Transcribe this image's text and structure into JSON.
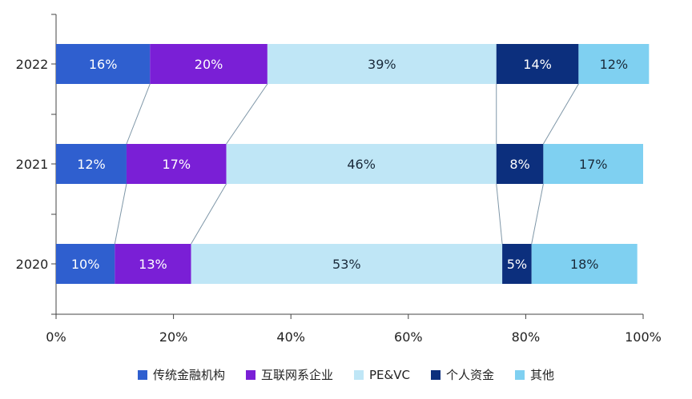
{
  "chart_data": {
    "type": "bar",
    "orientation": "horizontal",
    "stacked": "percent",
    "categories": [
      "2022",
      "2021",
      "2020"
    ],
    "series": [
      {
        "name": "传统金融机构",
        "color": "#2f5fcf",
        "values": [
          16,
          12,
          10
        ],
        "labels": [
          "16%",
          "12%",
          "10%"
        ]
      },
      {
        "name": "互联网系企业",
        "color": "#7a1fd6",
        "values": [
          20,
          17,
          13
        ],
        "labels": [
          "20%",
          "17%",
          "13%"
        ]
      },
      {
        "name": "PE&VC",
        "color": "#bfe6f6",
        "values": [
          39,
          46,
          53
        ],
        "labels": [
          "39%",
          "46%",
          "53%"
        ]
      },
      {
        "name": "个人资金",
        "color": "#0c2f7d",
        "values": [
          14,
          8,
          5
        ],
        "labels": [
          "14%",
          "8%",
          "5%"
        ]
      },
      {
        "name": "其他",
        "color": "#7fd0f1",
        "values": [
          12,
          17,
          18
        ],
        "labels": [
          "12%",
          "17%",
          "18%"
        ]
      }
    ],
    "xlim": [
      0,
      100
    ],
    "xticks": [
      "0%",
      "20%",
      "40%",
      "60%",
      "80%",
      "100%"
    ],
    "legend_position": "bottom",
    "grid": false
  }
}
